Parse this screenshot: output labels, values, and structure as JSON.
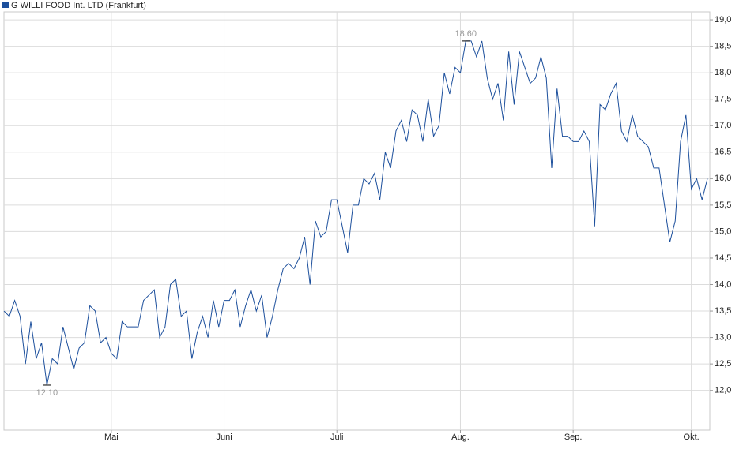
{
  "chart_data": {
    "type": "line",
    "series": [
      {
        "name": "G WILLI FOOD Int. LTD (Frankfurt)",
        "color": "#1c4f9c",
        "values": [
          13.5,
          13.4,
          13.7,
          13.4,
          12.5,
          13.3,
          12.6,
          12.9,
          12.1,
          12.6,
          12.5,
          13.2,
          12.8,
          12.4,
          12.8,
          12.9,
          13.6,
          13.5,
          12.9,
          13.0,
          12.7,
          12.6,
          13.3,
          13.2,
          13.2,
          13.2,
          13.7,
          13.8,
          13.9,
          13.0,
          13.2,
          14.0,
          14.1,
          13.4,
          13.5,
          12.6,
          13.1,
          13.4,
          13.0,
          13.7,
          13.2,
          13.7,
          13.7,
          13.9,
          13.2,
          13.6,
          13.9,
          13.5,
          13.8,
          13.0,
          13.4,
          13.9,
          14.3,
          14.4,
          14.3,
          14.5,
          14.9,
          14.0,
          15.2,
          14.9,
          15.0,
          15.6,
          15.6,
          15.1,
          14.6,
          15.5,
          15.5,
          16.0,
          15.9,
          16.1,
          15.6,
          16.5,
          16.2,
          16.9,
          17.1,
          16.7,
          17.3,
          17.2,
          16.7,
          17.5,
          16.8,
          17.0,
          18.0,
          17.6,
          18.1,
          18.0,
          18.6,
          18.6,
          18.3,
          18.6,
          17.9,
          17.5,
          17.8,
          17.1,
          18.4,
          17.4,
          18.4,
          18.1,
          17.8,
          17.9,
          18.3,
          17.9,
          16.2,
          17.7,
          16.8,
          16.8,
          16.7,
          16.7,
          16.9,
          16.7,
          15.1,
          17.4,
          17.3,
          17.6,
          17.8,
          16.9,
          16.7,
          17.2,
          16.8,
          16.7,
          16.6,
          16.2,
          16.2,
          15.5,
          14.8,
          15.2,
          16.7,
          17.2,
          15.8,
          16.0,
          15.6,
          16.0
        ],
        "value_labels": [
          null,
          null,
          null,
          null,
          null,
          null,
          null,
          null,
          "12,10",
          null,
          null,
          null,
          null,
          null,
          null,
          null,
          null,
          null,
          null,
          null,
          null,
          null,
          null,
          null,
          null,
          null,
          null,
          null,
          null,
          null,
          null,
          null,
          null,
          null,
          null,
          null,
          null,
          null,
          null,
          null,
          null,
          null,
          null,
          null,
          null,
          null,
          null,
          null,
          null,
          null,
          null,
          null,
          null,
          null,
          null,
          null,
          null,
          null,
          null,
          null,
          null,
          null,
          null,
          null,
          null,
          null,
          null,
          null,
          null,
          null,
          null,
          null,
          null,
          null,
          null,
          null,
          null,
          null,
          null,
          null,
          null,
          null,
          null,
          null,
          null,
          null,
          "18,60",
          null,
          null,
          null,
          null,
          null,
          null,
          null,
          null,
          null,
          null,
          null,
          null,
          null,
          null,
          null,
          null,
          null,
          null,
          null,
          null,
          null,
          null,
          null,
          null,
          null,
          null,
          null,
          null,
          null,
          null,
          null,
          null,
          null,
          null,
          null,
          null,
          null,
          null,
          null,
          null,
          null,
          null,
          null,
          null,
          null
        ]
      }
    ],
    "categories": [
      null,
      null,
      null,
      null,
      null,
      null,
      null,
      null,
      null,
      null,
      null,
      null,
      null,
      null,
      null,
      null,
      null,
      null,
      null,
      null,
      "Mai",
      null,
      null,
      null,
      null,
      null,
      null,
      null,
      null,
      null,
      null,
      null,
      null,
      null,
      null,
      null,
      null,
      null,
      null,
      null,
      null,
      "Juni",
      null,
      null,
      null,
      null,
      null,
      null,
      null,
      null,
      null,
      null,
      null,
      null,
      null,
      null,
      null,
      null,
      null,
      null,
      null,
      null,
      "Juli",
      null,
      null,
      null,
      null,
      null,
      null,
      null,
      null,
      null,
      null,
      null,
      null,
      null,
      null,
      null,
      null,
      null,
      null,
      null,
      null,
      null,
      null,
      "Aug.",
      null,
      null,
      null,
      null,
      null,
      null,
      null,
      null,
      null,
      null,
      null,
      null,
      null,
      null,
      null,
      null,
      null,
      null,
      null,
      null,
      "Sep.",
      null,
      null,
      null,
      null,
      null,
      null,
      null,
      null,
      null,
      null,
      null,
      null,
      null,
      null,
      null,
      null,
      null,
      null,
      null,
      null,
      null,
      "Okt.",
      null,
      null,
      null
    ],
    "ylim": [
      11.25,
      19.15
    ],
    "yticks": [
      {
        "value": 12,
        "label": "12,0"
      },
      {
        "value": 12.5,
        "label": "12,5"
      },
      {
        "value": 13,
        "label": "13,0"
      },
      {
        "value": 13.5,
        "label": "13,5"
      },
      {
        "value": 14,
        "label": "14,0"
      },
      {
        "value": 14.5,
        "label": "14,5"
      },
      {
        "value": 15,
        "label": "15,0"
      },
      {
        "value": 15.5,
        "label": "15,5"
      },
      {
        "value": 16,
        "label": "16,0"
      },
      {
        "value": 16.5,
        "label": "16,5"
      },
      {
        "value": 17,
        "label": "17,0"
      },
      {
        "value": 17.5,
        "label": "17,5"
      },
      {
        "value": 18,
        "label": "18,0"
      },
      {
        "value": 18.5,
        "label": "18,5"
      },
      {
        "value": 19,
        "label": "19,0"
      }
    ],
    "grid": true
  }
}
